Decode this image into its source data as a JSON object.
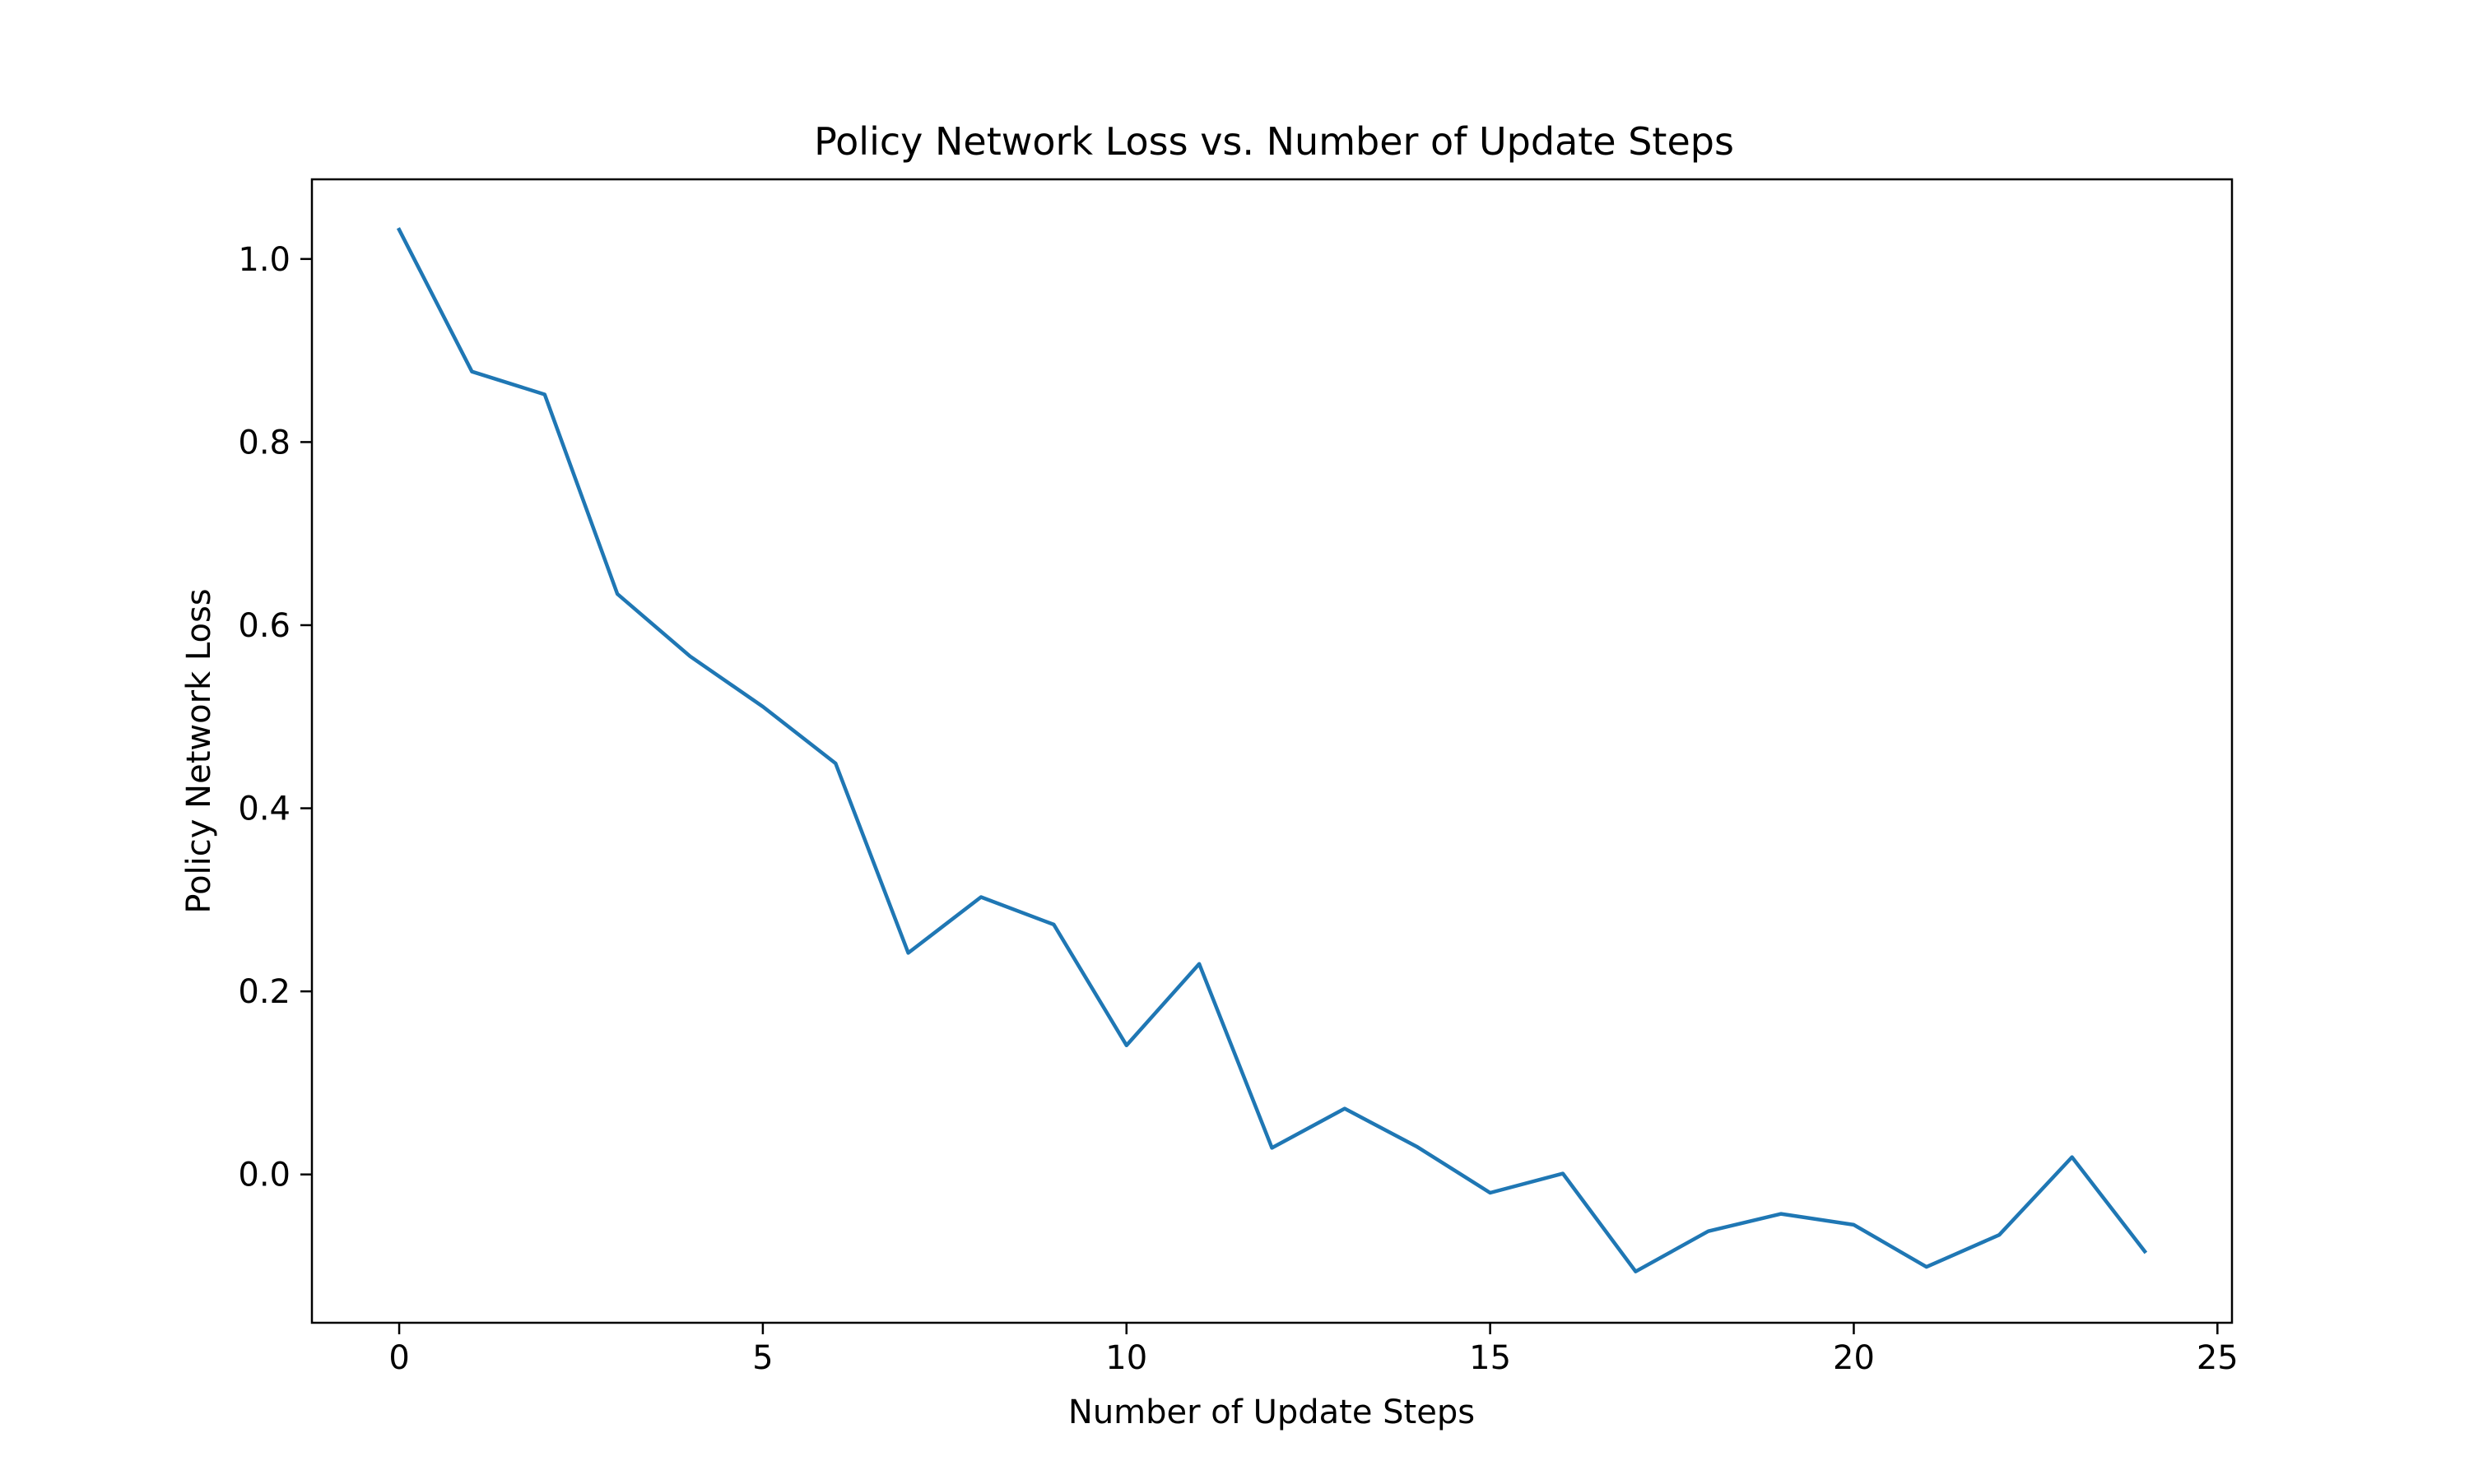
{
  "chart_data": {
    "type": "line",
    "title": "Policy Network Loss vs. Number of Update Steps",
    "xlabel": "Number of Update Steps",
    "ylabel": "Policy Network Loss",
    "xlim": [
      -1.2,
      25.2
    ],
    "ylim": [
      -0.162,
      1.087
    ],
    "xticks": [
      0,
      5,
      10,
      15,
      20,
      25
    ],
    "yticks": [
      0.0,
      0.2,
      0.4,
      0.6,
      0.8,
      1.0
    ],
    "xtick_labels": [
      "0",
      "5",
      "10",
      "15",
      "20",
      "25"
    ],
    "ytick_labels": [
      "0.0",
      "0.2",
      "0.4",
      "0.6",
      "0.8",
      "1.0"
    ],
    "grid": false,
    "legend": "none",
    "series": [
      {
        "color": "#1f77b4",
        "x": [
          0,
          1,
          2,
          3,
          4,
          5,
          6,
          7,
          8,
          9,
          10,
          11,
          12,
          13,
          14,
          15,
          16,
          17,
          18,
          19,
          20,
          21,
          22,
          23,
          24
        ],
        "values": [
          1.032,
          0.877,
          0.852,
          0.634,
          0.566,
          0.511,
          0.449,
          0.242,
          0.303,
          0.273,
          0.141,
          0.23,
          0.029,
          0.072,
          0.03,
          -0.02,
          0.001,
          -0.106,
          -0.062,
          -0.043,
          -0.055,
          -0.101,
          -0.066,
          0.019,
          -0.084
        ]
      }
    ]
  }
}
